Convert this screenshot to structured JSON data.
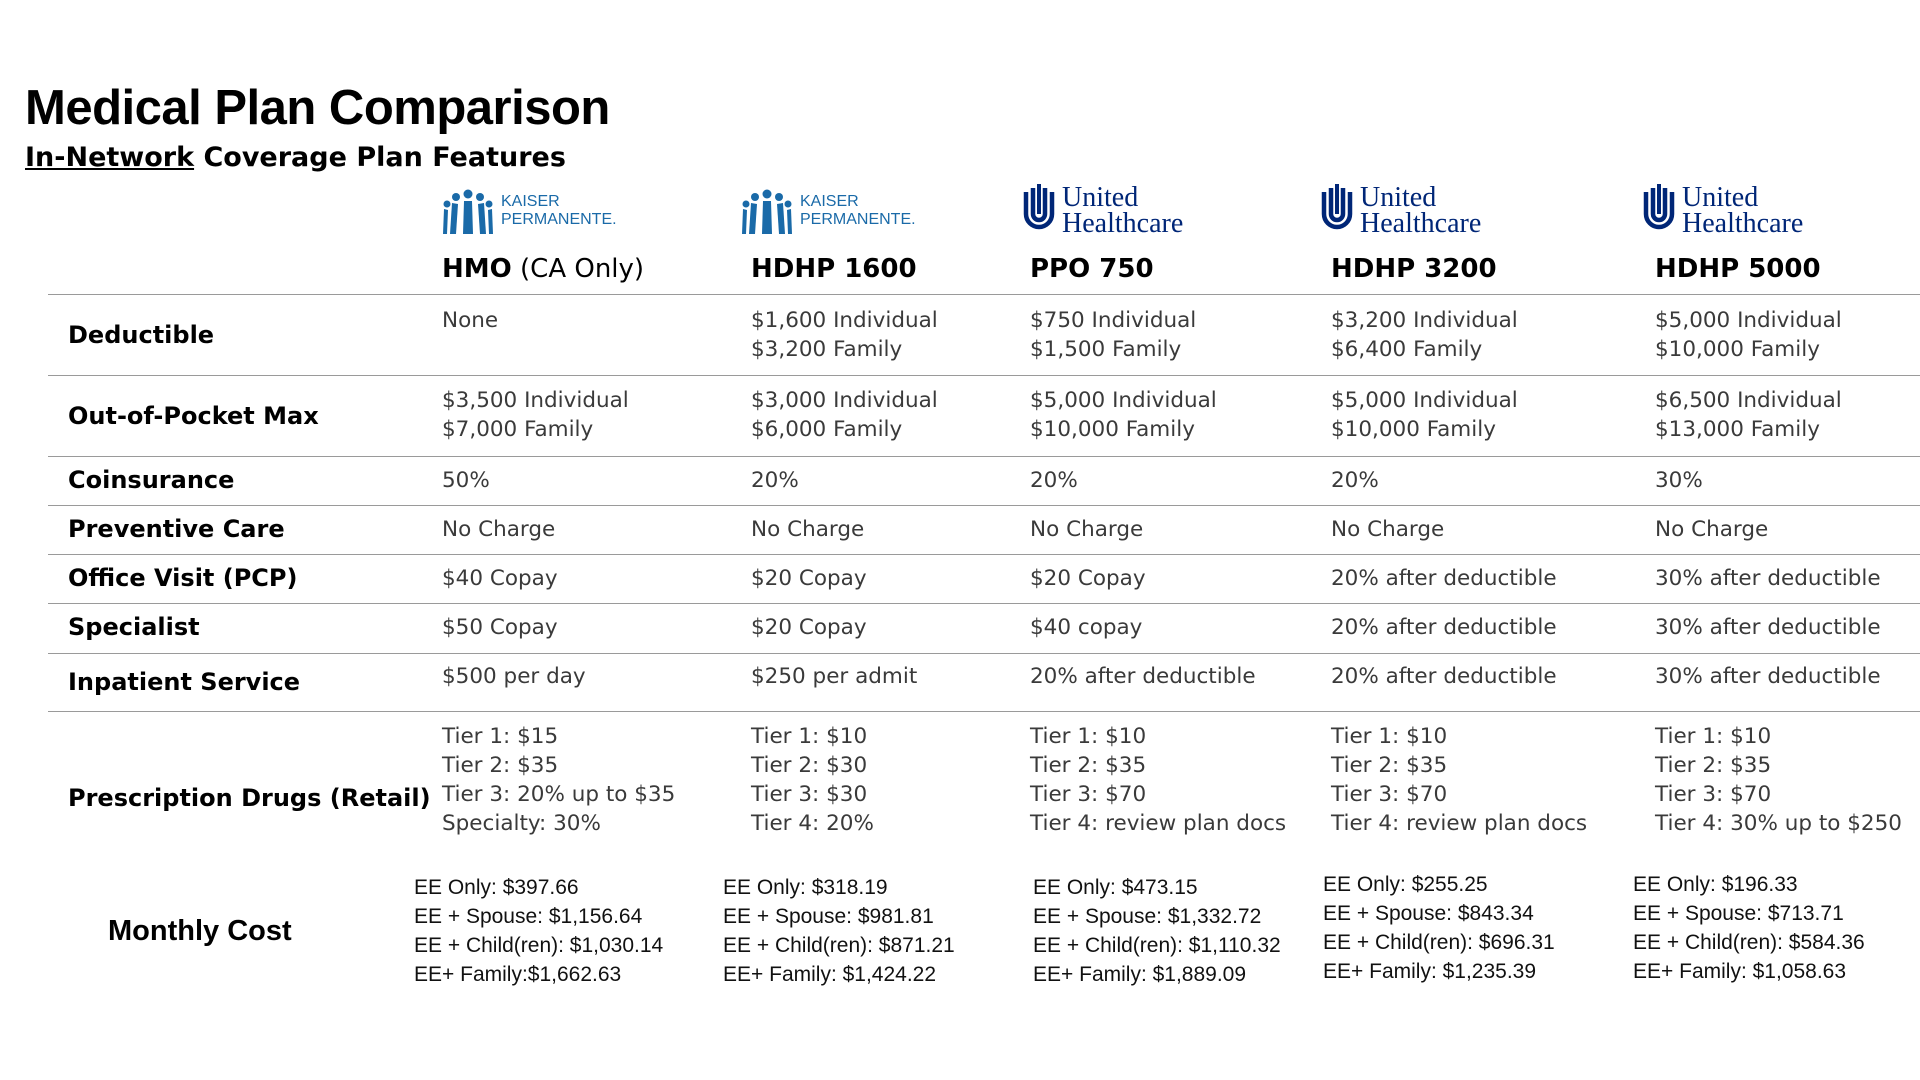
{
  "header": {
    "title": "Medical Plan Comparison",
    "subtitle_underlined": "In-Network",
    "subtitle_rest": " Coverage Plan Features"
  },
  "plans": [
    {
      "logo": {
        "name": "kaiser-permanente-logo",
        "line1": "KAISER",
        "line2": "PERMANENTE."
      },
      "name_bold": "HMO",
      "name_light": " (CA Only)"
    },
    {
      "logo": {
        "name": "kaiser-permanente-logo",
        "line1": "KAISER",
        "line2": "PERMANENTE."
      },
      "name_bold": "HDHP 1600",
      "name_light": ""
    },
    {
      "logo": {
        "name": "united-healthcare-logo",
        "line1": "United",
        "line2": "Healthcare"
      },
      "name_bold": "PPO 750",
      "name_light": ""
    },
    {
      "logo": {
        "name": "united-healthcare-logo",
        "line1": "United",
        "line2": "Healthcare"
      },
      "name_bold": "HDHP 3200",
      "name_light": ""
    },
    {
      "logo": {
        "name": "united-healthcare-logo",
        "line1": "United",
        "line2": "Healthcare"
      },
      "name_bold": "HDHP 5000",
      "name_light": ""
    }
  ],
  "rows": [
    {
      "label": "Deductible",
      "cells": [
        [
          "None"
        ],
        [
          "$1,600 Individual",
          "$3,200 Family"
        ],
        [
          "$750 Individual",
          "$1,500 Family"
        ],
        [
          "$3,200 Individual",
          "$6,400 Family"
        ],
        [
          "$5,000 Individual",
          "$10,000 Family"
        ]
      ]
    },
    {
      "label": "Out-of-Pocket Max",
      "cells": [
        [
          "$3,500 Individual",
          "$7,000 Family"
        ],
        [
          "$3,000 Individual",
          "$6,000 Family"
        ],
        [
          "$5,000 Individual",
          "$10,000 Family"
        ],
        [
          "$5,000 Individual",
          "$10,000 Family"
        ],
        [
          "$6,500 Individual",
          "$13,000 Family"
        ]
      ]
    },
    {
      "label": "Coinsurance",
      "cells": [
        [
          "50%"
        ],
        [
          "20%"
        ],
        [
          "20%"
        ],
        [
          "20%"
        ],
        [
          "30%"
        ]
      ]
    },
    {
      "label": "Preventive Care",
      "cells": [
        [
          "No Charge"
        ],
        [
          "No Charge"
        ],
        [
          "No Charge"
        ],
        [
          "No Charge"
        ],
        [
          "No Charge"
        ]
      ]
    },
    {
      "label": "Office Visit (PCP)",
      "cells": [
        [
          "$40 Copay"
        ],
        [
          "$20 Copay"
        ],
        [
          "$20 Copay"
        ],
        [
          "20% after deductible"
        ],
        [
          "30% after deductible"
        ]
      ]
    },
    {
      "label": "Specialist",
      "cells": [
        [
          "$50 Copay"
        ],
        [
          "$20 Copay"
        ],
        [
          "$40 copay"
        ],
        [
          "20% after deductible"
        ],
        [
          "30% after deductible"
        ]
      ]
    },
    {
      "label": "Inpatient Service",
      "cells": [
        [
          "$500 per day"
        ],
        [
          "$250 per admit"
        ],
        [
          "20% after deductible"
        ],
        [
          "20% after deductible"
        ],
        [
          "30% after deductible"
        ]
      ]
    },
    {
      "label": "Prescription Drugs (Retail)",
      "cells": [
        [
          "Tier 1: $15",
          "Tier 2: $35",
          "Tier 3: 20% up to $35",
          "Specialty: 30%"
        ],
        [
          "Tier 1: $10",
          "Tier 2: $30",
          "Tier 3: $30",
          "Tier 4: 20%"
        ],
        [
          "Tier 1: $10",
          "Tier 2: $35",
          "Tier 3: $70",
          "Tier 4: review plan docs"
        ],
        [
          "Tier 1: $10",
          "Tier 2: $35",
          "Tier 3: $70",
          "Tier 4: review plan docs"
        ],
        [
          "Tier 1: $10",
          "Tier 2: $35",
          "Tier 3: $70",
          "Tier 4: 30% up to $250"
        ]
      ]
    }
  ],
  "monthly_cost": {
    "label": "Monthly Cost",
    "cells": [
      [
        "EE Only: $397.66",
        "EE + Spouse: $1,156.64",
        "EE + Child(ren): $1,030.14",
        "EE+ Family:$1,662.63"
      ],
      [
        "EE Only: $318.19",
        "EE + Spouse: $981.81",
        "EE + Child(ren): $871.21",
        "EE+ Family: $1,424.22"
      ],
      [
        "EE Only: $473.15",
        "EE + Spouse: $1,332.72",
        "EE + Child(ren): $1,110.32",
        "EE+ Family: $1,889.09"
      ],
      [
        "EE Only: $255.25",
        "EE + Spouse: $843.34",
        "EE + Child(ren): $696.31",
        "EE+ Family: $1,235.39"
      ],
      [
        "EE Only: $196.33",
        "EE + Spouse: $713.71",
        "EE + Child(ren): $584.36",
        "EE+ Family: $1,058.63"
      ]
    ]
  },
  "colors": {
    "kaiser_blue": "#1a6aa8",
    "uhc_navy": "#002677",
    "rule_gray": "#9a9a9a"
  }
}
